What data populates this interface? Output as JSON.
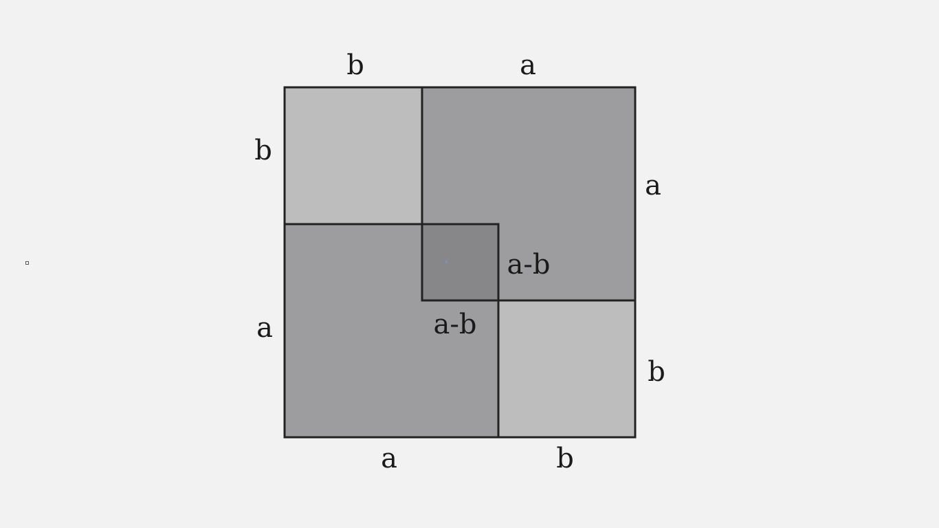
{
  "colors": {
    "background": "#f2f2f2",
    "small_square": "#bdbdbd",
    "large_square": "#9d9d9f",
    "overlap_square": "#878789",
    "stroke": "#222222",
    "center_dot": "#7f8fd8"
  },
  "labels": {
    "top_b": "b",
    "top_a": "a",
    "left_b": "b",
    "left_a": "a",
    "right_a": "a",
    "right_b": "b",
    "bottom_a": "a",
    "bottom_b": "b",
    "inner_right": "a-b",
    "inner_bottom": "a-b"
  }
}
